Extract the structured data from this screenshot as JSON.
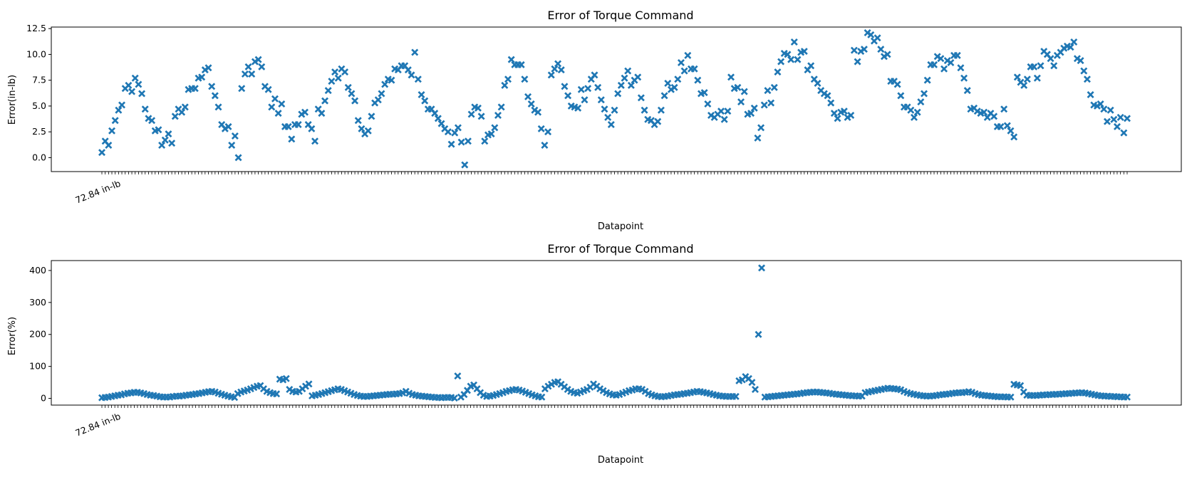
{
  "colors": {
    "marker": "#1f77b4",
    "axes": "#000000",
    "background": "#ffffff"
  },
  "chart_data": [
    {
      "type": "scatter",
      "marker": "X",
      "title": "Error of Torque Command",
      "xlabel": "Datapoint",
      "ylabel": "Error(in-lb)",
      "ylim": [
        -1.35,
        12.65
      ],
      "yticks": [
        "0.0",
        "2.5",
        "5.0",
        "7.5",
        "10.0",
        "12.5"
      ],
      "xtick_label_example": "72.84 in-lb",
      "grid": false,
      "legend": "none",
      "series": [
        {
          "values": [
            0.5,
            1.6,
            1.2,
            2.6,
            3.6,
            4.6,
            5.1,
            6.7,
            7.0,
            6.4,
            7.7,
            7.1,
            6.2,
            4.7,
            3.8,
            3.6,
            2.6,
            2.7,
            1.2,
            1.7,
            2.3,
            1.4,
            4.0,
            4.7,
            4.4,
            4.9,
            6.6,
            6.7,
            6.7,
            7.7,
            7.8,
            8.5,
            8.7,
            6.9,
            6.0,
            4.9,
            3.2,
            2.8,
            3.0,
            1.2,
            2.1,
            0.0,
            6.7,
            8.1,
            8.8,
            8.1,
            9.3,
            9.5,
            8.8,
            6.9,
            6.6,
            4.9,
            5.7,
            4.3,
            5.2,
            3.0,
            3.0,
            1.8,
            3.2,
            3.2,
            4.2,
            4.4,
            3.2,
            2.8,
            1.6,
            4.7,
            4.3,
            5.5,
            6.5,
            7.4,
            8.3,
            7.7,
            8.6,
            8.3,
            6.8,
            6.2,
            5.5,
            3.6,
            2.8,
            2.3,
            2.6,
            4.0,
            5.3,
            5.6,
            6.2,
            7.1,
            7.6,
            7.5,
            8.6,
            8.5,
            8.9,
            8.9,
            8.5,
            8.0,
            10.2,
            7.6,
            6.1,
            5.5,
            4.7,
            4.7,
            4.3,
            3.8,
            3.3,
            2.8,
            2.5,
            1.3,
            2.4,
            2.9,
            1.5,
            -0.7,
            1.6,
            4.2,
            4.9,
            4.8,
            4.0,
            1.6,
            2.2,
            2.3,
            2.9,
            4.1,
            4.9,
            7.0,
            7.6,
            9.5,
            9.0,
            9.0,
            9.0,
            7.6,
            5.9,
            5.2,
            4.6,
            4.4,
            2.8,
            1.2,
            2.5,
            8.0,
            8.6,
            9.1,
            8.5,
            6.9,
            6.0,
            5.0,
            4.9,
            4.8,
            6.6,
            5.6,
            6.7,
            7.6,
            8.0,
            6.8,
            5.6,
            4.7,
            3.9,
            3.2,
            4.6,
            6.2,
            7.0,
            7.7,
            8.4,
            7.0,
            7.5,
            7.8,
            5.8,
            4.6,
            3.7,
            3.6,
            3.2,
            3.5,
            4.6,
            6.0,
            7.2,
            6.6,
            6.8,
            7.6,
            9.2,
            8.4,
            9.9,
            8.6,
            8.6,
            7.5,
            6.2,
            6.3,
            5.2,
            4.1,
            3.9,
            4.2,
            4.5,
            3.7,
            4.5,
            7.8,
            6.7,
            6.8,
            5.4,
            6.4,
            4.2,
            4.3,
            4.8,
            1.9,
            2.9,
            5.1,
            6.5,
            5.3,
            6.8,
            8.3,
            9.3,
            10.1,
            10.0,
            9.5,
            11.2,
            9.5,
            10.2,
            10.3,
            8.5,
            8.9,
            7.6,
            7.2,
            6.5,
            6.2,
            6.0,
            5.3,
            4.3,
            3.8,
            4.4,
            4.5,
            3.9,
            4.1,
            10.4,
            9.3,
            10.3,
            10.5,
            12.1,
            11.9,
            11.3,
            11.6,
            10.5,
            9.8,
            10.0,
            7.4,
            7.4,
            7.1,
            6.0,
            4.9,
            4.9,
            4.6,
            3.9,
            4.4,
            5.4,
            6.2,
            7.5,
            9.0,
            9.0,
            9.8,
            9.6,
            8.6,
            9.4,
            9.2,
            9.9,
            9.9,
            8.7,
            7.7,
            6.5,
            4.7,
            4.8,
            4.5,
            4.3,
            4.4,
            3.9,
            4.3,
            4.0,
            3.0,
            3.0,
            4.7,
            3.1,
            2.6,
            2.0,
            7.8,
            7.3,
            7.0,
            7.6,
            8.8,
            8.8,
            7.7,
            8.9,
            10.3,
            10.0,
            9.6,
            8.9,
            9.9,
            10.2,
            10.6,
            10.8,
            10.7,
            11.2,
            9.6,
            9.4,
            8.4,
            7.6,
            6.1,
            5.1,
            5.0,
            5.2,
            4.7,
            3.5,
            4.6,
            3.7,
            3.0,
            3.9,
            2.4,
            3.8
          ]
        }
      ]
    },
    {
      "type": "scatter",
      "marker": "X",
      "title": "Error of Torque Command",
      "xlabel": "Datapoint",
      "ylabel": "Error(%)",
      "ylim": [
        -21,
        431
      ],
      "yticks": [
        "0",
        "100",
        "200",
        "300",
        "400"
      ],
      "xtick_label_example": "72.84 in-lb",
      "grid": false,
      "legend": "none",
      "series": [
        {
          "values": [
            2,
            3,
            4,
            6,
            8,
            10,
            11,
            14,
            16,
            17,
            19,
            19,
            17,
            15,
            12,
            10,
            9,
            7,
            5,
            4,
            4,
            4,
            6,
            7,
            7,
            8,
            10,
            11,
            12,
            14,
            15,
            17,
            19,
            21,
            22,
            20,
            16,
            13,
            10,
            7,
            5,
            3,
            15,
            20,
            23,
            26,
            30,
            34,
            38,
            40,
            30,
            22,
            18,
            15,
            14,
            60,
            58,
            62,
            28,
            22,
            20,
            22,
            30,
            38,
            45,
            8,
            10,
            12,
            15,
            18,
            21,
            24,
            27,
            30,
            28,
            24,
            20,
            16,
            12,
            9,
            7,
            6,
            6,
            7,
            8,
            9,
            10,
            11,
            12,
            13,
            13,
            14,
            15,
            17,
            22,
            16,
            12,
            10,
            8,
            7,
            6,
            5,
            4,
            3,
            3,
            2,
            3,
            3,
            3,
            1,
            70,
            4,
            12,
            25,
            38,
            42,
            30,
            18,
            10,
            6,
            7,
            9,
            12,
            15,
            18,
            22,
            24,
            27,
            28,
            26,
            23,
            19,
            15,
            11,
            8,
            5,
            4,
            30,
            38,
            44,
            50,
            52,
            44,
            36,
            28,
            22,
            18,
            16,
            20,
            24,
            28,
            35,
            45,
            38,
            30,
            24,
            18,
            14,
            11,
            10,
            12,
            16,
            20,
            24,
            26,
            30,
            30,
            28,
            22,
            15,
            11,
            8,
            6,
            5,
            6,
            7,
            9,
            11,
            12,
            13,
            15,
            16,
            18,
            20,
            22,
            21,
            19,
            17,
            15,
            12,
            10,
            8,
            7,
            6,
            6,
            6,
            6,
            55,
            58,
            68,
            62,
            50,
            28,
            200,
            408,
            4,
            5,
            6,
            7,
            8,
            9,
            10,
            11,
            12,
            13,
            14,
            15,
            17,
            18,
            19,
            20,
            20,
            19,
            18,
            17,
            16,
            14,
            13,
            12,
            11,
            10,
            9,
            8,
            8,
            7,
            7,
            18,
            20,
            22,
            24,
            26,
            28,
            30,
            32,
            31,
            30,
            29,
            27,
            22,
            18,
            15,
            13,
            11,
            9,
            8,
            7,
            7,
            8,
            9,
            11,
            12,
            13,
            14,
            16,
            17,
            18,
            18,
            19,
            21,
            19,
            15,
            12,
            10,
            9,
            8,
            7,
            6,
            5,
            5,
            5,
            4,
            4,
            44,
            42,
            40,
            20,
            10,
            9,
            9,
            9,
            10,
            11,
            11,
            12,
            12,
            13,
            13,
            14,
            15,
            15,
            16,
            17,
            17,
            18,
            17,
            15,
            13,
            11,
            9,
            8,
            7,
            7,
            6,
            6,
            5,
            5,
            4,
            4
          ]
        }
      ]
    }
  ]
}
